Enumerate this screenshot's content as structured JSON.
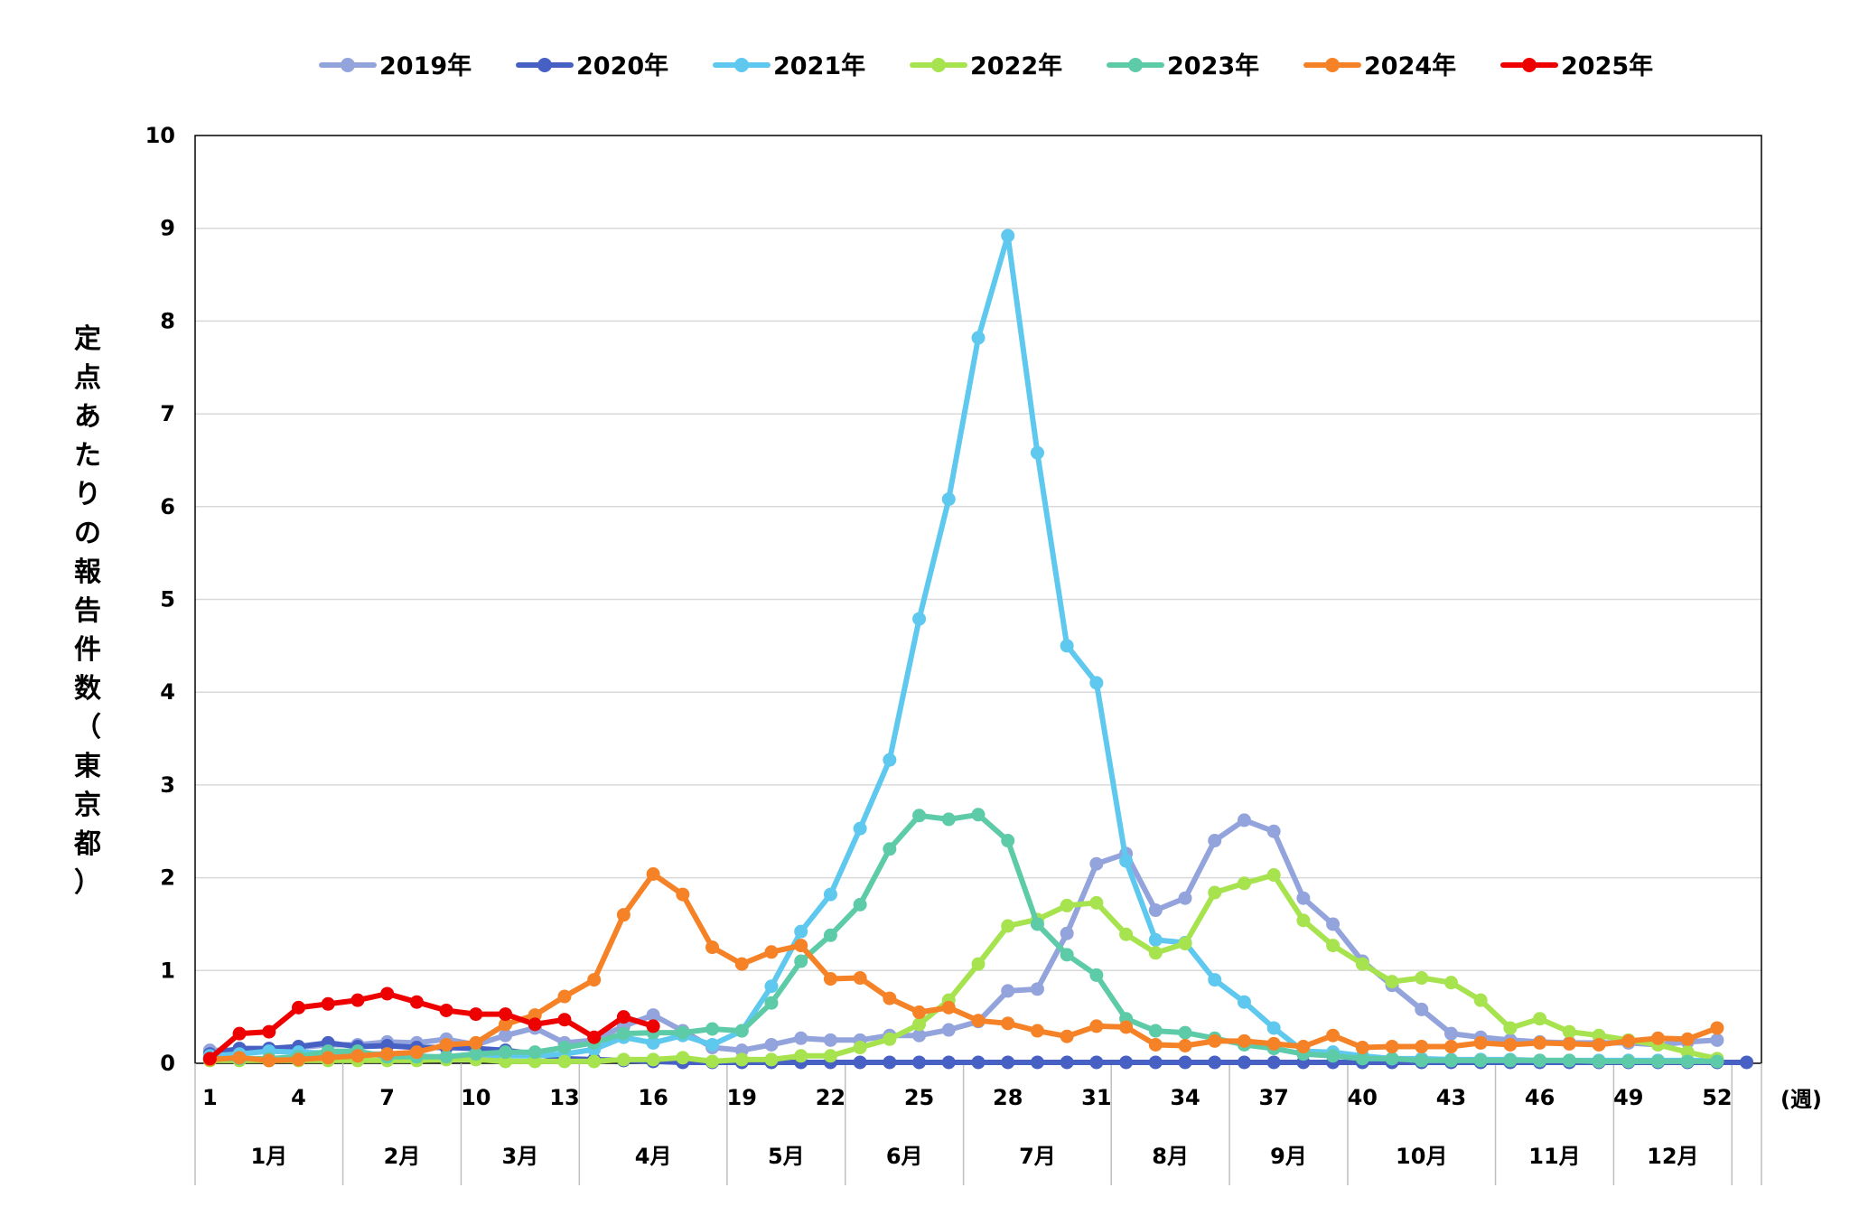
{
  "chart_data": {
    "type": "line",
    "title": "",
    "xlabel": "(週)",
    "ylabel": "定点あたりの報告件数（東京都）",
    "ylim": [
      0,
      10
    ],
    "yticks": [
      0,
      1,
      2,
      3,
      4,
      5,
      6,
      7,
      8,
      9,
      10
    ],
    "xlim": [
      0.5,
      53.5
    ],
    "xticks": [
      1,
      4,
      7,
      10,
      13,
      16,
      19,
      22,
      25,
      28,
      31,
      34,
      37,
      40,
      43,
      46,
      49,
      52
    ],
    "months": [
      {
        "label": "1月",
        "start": 0.5,
        "end": 5.5
      },
      {
        "label": "2月",
        "start": 5.5,
        "end": 9.5
      },
      {
        "label": "3月",
        "start": 9.5,
        "end": 13.5
      },
      {
        "label": "4月",
        "start": 13.5,
        "end": 18.5
      },
      {
        "label": "5月",
        "start": 18.5,
        "end": 22.5
      },
      {
        "label": "6月",
        "start": 22.5,
        "end": 26.5
      },
      {
        "label": "7月",
        "start": 26.5,
        "end": 31.5
      },
      {
        "label": "8月",
        "start": 31.5,
        "end": 35.5
      },
      {
        "label": "9月",
        "start": 35.5,
        "end": 39.5
      },
      {
        "label": "10月",
        "start": 39.5,
        "end": 44.5
      },
      {
        "label": "11月",
        "start": 44.5,
        "end": 48.5
      },
      {
        "label": "12月",
        "start": 48.5,
        "end": 52.5
      }
    ],
    "grid": true,
    "legend": "top",
    "series": [
      {
        "name": "2019年",
        "color": "#93a3dc",
        "x_start": 1,
        "values": [
          0.14,
          0.14,
          0.15,
          0.17,
          0.2,
          0.2,
          0.23,
          0.22,
          0.26,
          0.2,
          0.3,
          0.38,
          0.22,
          0.25,
          0.4,
          0.52,
          0.35,
          0.17,
          0.14,
          0.2,
          0.27,
          0.25,
          0.25,
          0.3,
          0.3,
          0.36,
          0.45,
          0.78,
          0.8,
          1.4,
          2.15,
          2.26,
          1.65,
          1.78,
          2.4,
          2.62,
          2.5,
          1.78,
          1.5,
          1.1,
          0.84,
          0.58,
          0.32,
          0.28,
          0.25,
          0.23,
          0.22,
          0.22,
          0.22,
          0.2,
          0.23,
          0.25
        ]
      },
      {
        "name": "2020年",
        "color": "#4760c4",
        "x_start": 1,
        "values": [
          0.1,
          0.16,
          0.16,
          0.18,
          0.22,
          0.18,
          0.19,
          0.17,
          0.17,
          0.16,
          0.14,
          0.1,
          0.05,
          0.04,
          0.03,
          0.02,
          0.01,
          0.01,
          0.01,
          0.01,
          0.01,
          0.01,
          0.01,
          0.01,
          0.01,
          0.01,
          0.01,
          0.01,
          0.01,
          0.01,
          0.01,
          0.01,
          0.01,
          0.01,
          0.01,
          0.01,
          0.01,
          0.01,
          0.01,
          0.01,
          0.01,
          0.01,
          0.01,
          0.01,
          0.01,
          0.01,
          0.01,
          0.01,
          0.01,
          0.01,
          0.01,
          0.01,
          0.01
        ]
      },
      {
        "name": "2021年",
        "color": "#5ec8ee",
        "x_start": 1,
        "values": [
          0.08,
          0.1,
          0.13,
          0.12,
          0.11,
          0.1,
          0.1,
          0.08,
          0.06,
          0.06,
          0.08,
          0.08,
          0.1,
          0.15,
          0.28,
          0.22,
          0.3,
          0.2,
          0.35,
          0.83,
          1.42,
          1.82,
          2.53,
          3.27,
          4.79,
          6.08,
          7.82,
          8.92,
          6.58,
          4.5,
          4.1,
          2.18,
          1.33,
          1.3,
          0.9,
          0.66,
          0.38,
          0.13,
          0.12,
          0.08,
          0.05,
          0.05,
          0.04,
          0.04,
          0.04,
          0.03,
          0.03,
          0.03,
          0.03,
          0.03,
          0.03,
          0.03
        ]
      },
      {
        "name": "2022年",
        "color": "#a6e34f",
        "x_start": 1,
        "values": [
          0.03,
          0.03,
          0.03,
          0.03,
          0.03,
          0.03,
          0.03,
          0.03,
          0.04,
          0.04,
          0.02,
          0.02,
          0.02,
          0.02,
          0.04,
          0.04,
          0.06,
          0.02,
          0.04,
          0.04,
          0.08,
          0.08,
          0.17,
          0.26,
          0.42,
          0.68,
          1.07,
          1.48,
          1.55,
          1.7,
          1.73,
          1.39,
          1.19,
          1.29,
          1.84,
          1.94,
          2.03,
          1.54,
          1.27,
          1.07,
          0.88,
          0.92,
          0.87,
          0.68,
          0.38,
          0.48,
          0.34,
          0.3,
          0.25,
          0.2,
          0.12,
          0.05
        ]
      },
      {
        "name": "2023年",
        "color": "#5ecba8",
        "x_start": 1,
        "values": [
          0.05,
          0.05,
          0.05,
          0.07,
          0.13,
          0.13,
          0.07,
          0.07,
          0.07,
          0.1,
          0.12,
          0.12,
          0.17,
          0.22,
          0.32,
          0.33,
          0.33,
          0.37,
          0.35,
          0.65,
          1.1,
          1.38,
          1.71,
          2.31,
          2.67,
          2.63,
          2.68,
          2.4,
          1.5,
          1.17,
          0.95,
          0.48,
          0.35,
          0.33,
          0.27,
          0.2,
          0.16,
          0.1,
          0.08,
          0.05,
          0.05,
          0.03,
          0.03,
          0.03,
          0.03,
          0.03,
          0.03,
          0.02,
          0.02,
          0.02,
          0.02,
          0.02
        ]
      },
      {
        "name": "2024年",
        "color": "#f58226",
        "x_start": 1,
        "values": [
          0.04,
          0.06,
          0.03,
          0.04,
          0.06,
          0.08,
          0.1,
          0.12,
          0.2,
          0.22,
          0.42,
          0.52,
          0.72,
          0.9,
          1.6,
          2.04,
          1.82,
          1.25,
          1.07,
          1.2,
          1.27,
          0.91,
          0.92,
          0.7,
          0.55,
          0.6,
          0.46,
          0.43,
          0.35,
          0.29,
          0.4,
          0.39,
          0.2,
          0.19,
          0.24,
          0.24,
          0.21,
          0.18,
          0.3,
          0.17,
          0.18,
          0.18,
          0.18,
          0.22,
          0.2,
          0.22,
          0.21,
          0.2,
          0.24,
          0.27,
          0.26,
          0.38
        ]
      },
      {
        "name": "2025年",
        "color": "#ee0000",
        "x_start": 1,
        "values": [
          0.05,
          0.32,
          0.34,
          0.6,
          0.64,
          0.68,
          0.75,
          0.66,
          0.57,
          0.53,
          0.53,
          0.42,
          0.47,
          0.28,
          0.5,
          0.4
        ]
      }
    ]
  }
}
